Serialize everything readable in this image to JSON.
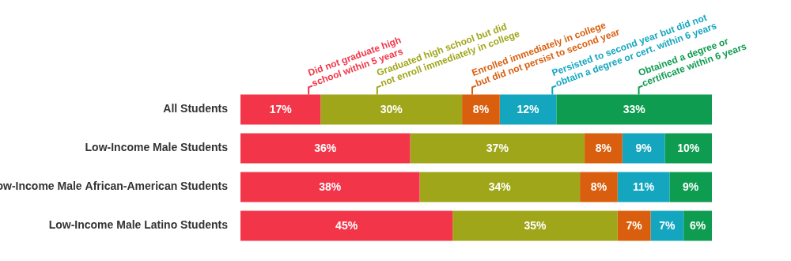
{
  "chart_data": {
    "type": "bar",
    "orientation": "horizontal",
    "stacked": true,
    "data_labels": true,
    "grid": false,
    "tick_labels": "y",
    "xlim": [
      0,
      100
    ],
    "categories": [
      "All Students",
      "Low-Income Male Students",
      "Low-Income Male African-American Students",
      "Low-Income Male Latino Students"
    ],
    "series": [
      {
        "name": "Did not graduate high school within 5 years",
        "color": "#f23548",
        "values": [
          17,
          36,
          38,
          45
        ],
        "value_labels": [
          "17%",
          "36%",
          "38%",
          "45%"
        ]
      },
      {
        "name": "Graduated high school but did not enroll immediately in college",
        "color": "#a0a61a",
        "values": [
          30,
          37,
          34,
          35
        ],
        "value_labels": [
          "30%",
          "37%",
          "34%",
          "35%"
        ]
      },
      {
        "name": "Enrolled immediately in college but did not persist to second year",
        "color": "#d95f0e",
        "values": [
          8,
          8,
          8,
          7
        ],
        "value_labels": [
          "8%",
          "8%",
          "8%",
          "7%"
        ]
      },
      {
        "name": "Persisted to second year but did not obtain a degree or cert. within 6 years",
        "color": "#14a6bf",
        "values": [
          12,
          9,
          11,
          7
        ],
        "value_labels": [
          "12%",
          "9%",
          "11%",
          "7%"
        ]
      },
      {
        "name": "Obtained a degree or certificate within 6 years",
        "color": "#0e9c50",
        "values": [
          33,
          10,
          9,
          6
        ],
        "value_labels": [
          "33%",
          "10%",
          "9%",
          "6%"
        ]
      }
    ]
  }
}
